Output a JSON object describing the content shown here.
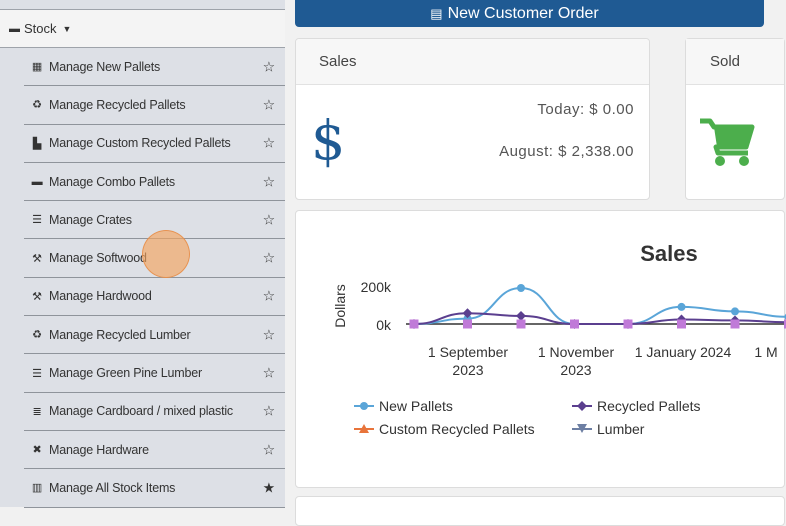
{
  "sidebar": {
    "section_label": "Stock",
    "items": [
      {
        "label": "Manage New Pallets",
        "icon": "pallet-icon",
        "glyph": "▦",
        "starred": false
      },
      {
        "label": "Manage Recycled Pallets",
        "icon": "recycle-icon",
        "glyph": "♻",
        "starred": false
      },
      {
        "label": "Manage Custom Recycled Pallets",
        "icon": "custom-pallet-icon",
        "glyph": "▙",
        "starred": false
      },
      {
        "label": "Manage Combo Pallets",
        "icon": "combo-pallet-icon",
        "glyph": "▬",
        "starred": false
      },
      {
        "label": "Manage Crates",
        "icon": "crate-icon",
        "glyph": "☰",
        "starred": false
      },
      {
        "label": "Manage Softwood",
        "icon": "hammer-icon",
        "glyph": "⚒",
        "starred": false
      },
      {
        "label": "Manage Hardwood",
        "icon": "hammer-icon",
        "glyph": "⚒",
        "starred": false
      },
      {
        "label": "Manage Recycled Lumber",
        "icon": "recycle-icon",
        "glyph": "♻",
        "starred": false
      },
      {
        "label": "Manage Green Pine Lumber",
        "icon": "crate-icon",
        "glyph": "☰",
        "starred": false
      },
      {
        "label": "Manage Cardboard / mixed plastic",
        "icon": "list-icon",
        "glyph": "≣",
        "starred": false
      },
      {
        "label": "Manage Hardware",
        "icon": "tools-icon",
        "glyph": "✖",
        "starred": false
      },
      {
        "label": "Manage All Stock Items",
        "icon": "warehouse-icon",
        "glyph": "▥",
        "starred": true
      }
    ]
  },
  "topbar": {
    "order_button": "New Customer Order"
  },
  "sales_card": {
    "title": "Sales",
    "today": "Today: $ 0.00",
    "month": "August: $ 2,338.00",
    "currency_symbol": "$"
  },
  "sold_card": {
    "title": "Sold"
  },
  "colors": {
    "primary": "#1f5a93",
    "cart_green": "#4cae4c",
    "new_pallets": "#5aa5d8",
    "recycled": "#5b3f8f",
    "custom": "#e8743b",
    "lumber": "#6d7fa3",
    "markers": "#c07ad8"
  },
  "chart_data": {
    "type": "line",
    "title": "Sales",
    "ylabel": "Dollars",
    "y_ticks": [
      "200k",
      "0k"
    ],
    "x_ticks": [
      {
        "line1": "1 September",
        "line2": "2023"
      },
      {
        "line1": "1 November",
        "line2": "2023"
      },
      {
        "line1": "1 January 2024",
        "line2": ""
      },
      {
        "line1": "1 M",
        "line2": ""
      }
    ],
    "x": [
      "2023-08",
      "2023-09",
      "2023-10",
      "2023-11",
      "2023-12",
      "2024-01",
      "2024-02",
      "2024-03"
    ],
    "series": [
      {
        "name": "New Pallets",
        "values": [
          0,
          30000,
          200000,
          0,
          0,
          95000,
          70000,
          40000
        ]
      },
      {
        "name": "Recycled Pallets",
        "values": [
          0,
          60000,
          45000,
          0,
          0,
          25000,
          20000,
          10000
        ]
      },
      {
        "name": "Custom Recycled Pallets",
        "values": [
          0,
          0,
          0,
          0,
          0,
          0,
          0,
          0
        ]
      },
      {
        "name": "Lumber",
        "values": [
          0,
          0,
          0,
          0,
          0,
          0,
          0,
          0
        ]
      }
    ],
    "ylim": [
      0,
      200000
    ]
  }
}
